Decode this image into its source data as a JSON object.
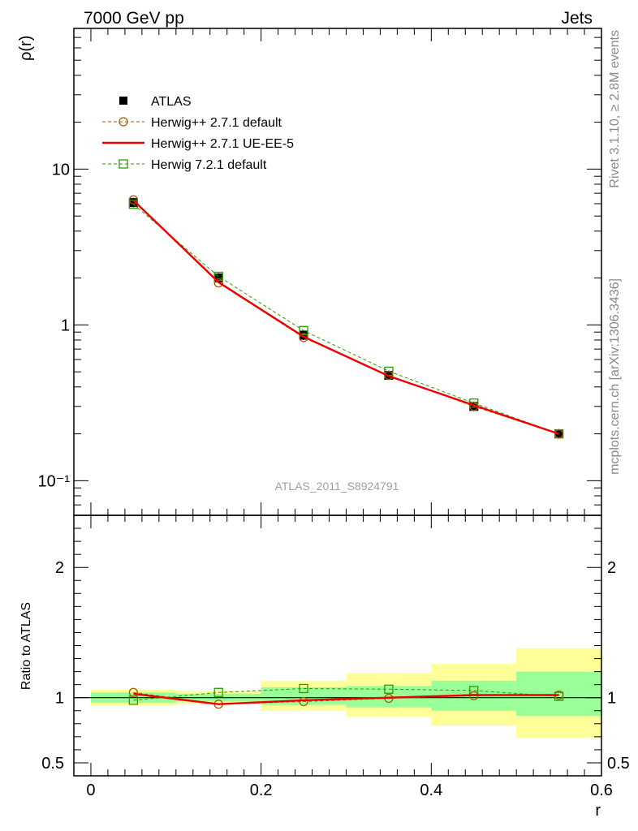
{
  "header": {
    "left": "7000 GeV pp",
    "right": "Jets"
  },
  "watermark": "ATLAS_2011_S8924791",
  "side_labels": {
    "top": "Rivet 3.1.10, ≥ 2.8M events",
    "bottom": "mcplots.cern.ch [arXiv:1306.3436]"
  },
  "colors": {
    "data": "#000000",
    "h271": "#a65b00",
    "ueee5": "#ee0000",
    "h721": "#2f9a00",
    "band_inner": "#99ff99",
    "band_outer": "#ffff99"
  },
  "chart_data": [
    {
      "type": "line",
      "panel": "main",
      "ylabel": "ρ(r)",
      "yscale": "log",
      "ylim": [
        0.06,
        80
      ],
      "xlim": [
        -0.02,
        0.6
      ],
      "yticks": [
        {
          "value": 10,
          "label": "10"
        },
        {
          "value": 1,
          "label": "1"
        },
        {
          "value": 0.1,
          "label": "10⁻¹"
        }
      ],
      "x": [
        0.05,
        0.15,
        0.25,
        0.35,
        0.45,
        0.55
      ],
      "series": [
        {
          "name": "ATLAS",
          "style": "data",
          "values": [
            6.1,
            2.0,
            0.86,
            0.475,
            0.3,
            0.2
          ]
        },
        {
          "name": "Herwig++ 2.7.1 default",
          "style": "h271",
          "values": [
            6.35,
            1.86,
            0.83,
            0.475,
            0.3,
            0.2
          ]
        },
        {
          "name": "Herwig++ 2.7.1 UE-EE-5",
          "style": "ueee5",
          "values": [
            6.3,
            1.88,
            0.84,
            0.47,
            0.305,
            0.2
          ]
        },
        {
          "name": "Herwig 7.2.1 default",
          "style": "h721",
          "values": [
            5.95,
            2.05,
            0.92,
            0.505,
            0.315,
            0.2
          ]
        }
      ]
    },
    {
      "type": "line",
      "panel": "ratio",
      "ylabel": "Ratio to ATLAS",
      "xlabel": "r",
      "ylim": [
        0.4,
        2.4
      ],
      "xlim": [
        -0.02,
        0.6
      ],
      "yticks": [
        {
          "value": 2,
          "label": "2"
        },
        {
          "value": 1,
          "label": "1"
        },
        {
          "value": 0.5,
          "label": "0.5"
        }
      ],
      "xticks": [
        {
          "value": 0,
          "label": "0"
        },
        {
          "value": 0.2,
          "label": "0.2"
        },
        {
          "value": 0.4,
          "label": "0.4"
        },
        {
          "value": 0.6,
          "label": "0.6"
        }
      ],
      "bins": [
        [
          0.0,
          0.1
        ],
        [
          0.1,
          0.2
        ],
        [
          0.2,
          0.3
        ],
        [
          0.3,
          0.4
        ],
        [
          0.4,
          0.5
        ],
        [
          0.5,
          0.6
        ]
      ],
      "band_inner": [
        [
          0.96,
          1.04
        ],
        [
          0.97,
          1.03
        ],
        [
          0.945,
          1.08
        ],
        [
          0.925,
          1.09
        ],
        [
          0.9,
          1.13
        ],
        [
          0.86,
          1.2
        ]
      ],
      "band_outer": [
        [
          0.94,
          1.06
        ],
        [
          0.95,
          1.05
        ],
        [
          0.9,
          1.13
        ],
        [
          0.855,
          1.19
        ],
        [
          0.785,
          1.26
        ],
        [
          0.69,
          1.38
        ]
      ],
      "x": [
        0.05,
        0.15,
        0.25,
        0.35,
        0.45,
        0.55
      ],
      "series": [
        {
          "name": "Herwig++ 2.7.1 default",
          "style": "h271",
          "values": [
            1.04,
            0.95,
            0.97,
            0.995,
            1.015,
            1.02
          ]
        },
        {
          "name": "Herwig++ 2.7.1 UE-EE-5",
          "style": "ueee5",
          "values": [
            1.03,
            0.95,
            0.98,
            1.0,
            1.02,
            1.02
          ]
        },
        {
          "name": "Herwig 7.2.1 default",
          "style": "h721",
          "values": [
            0.98,
            1.04,
            1.07,
            1.065,
            1.055,
            1.01
          ]
        }
      ]
    }
  ]
}
